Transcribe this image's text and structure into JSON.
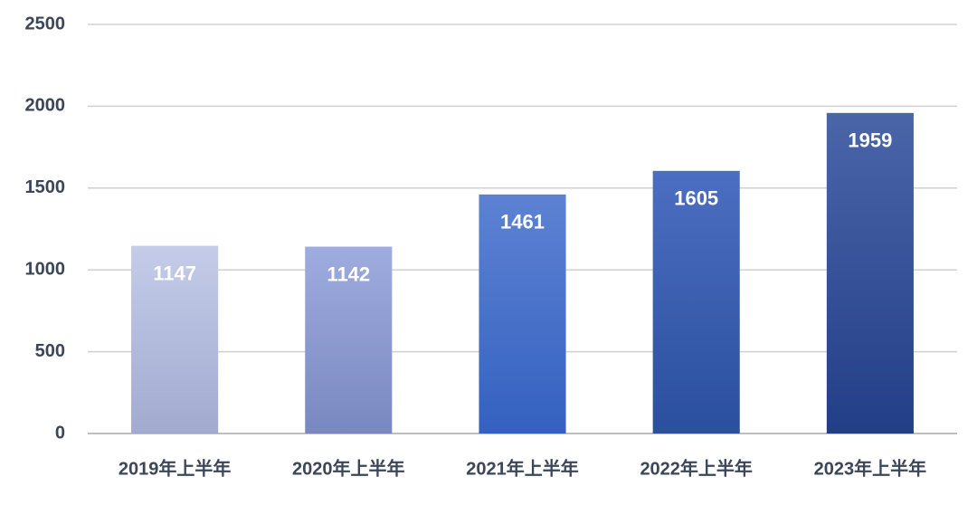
{
  "chart_data": {
    "type": "bar",
    "categories": [
      "2019年上半年",
      "2020年上半年",
      "2021年上半年",
      "2022年上半年",
      "2023年上半年"
    ],
    "values": [
      1147,
      1142,
      1461,
      1605,
      1959
    ],
    "colors": [
      [
        "#c4cce9",
        "#a2abcf"
      ],
      [
        "#9eacdf",
        "#7988c0"
      ],
      [
        "#5d82d3",
        "#3461c0"
      ],
      [
        "#4c6ec2",
        "#2a4f9d"
      ],
      [
        "#4b65a9",
        "#223e86"
      ]
    ],
    "ylim": [
      0,
      2500
    ],
    "yticks": [
      0,
      500,
      1000,
      1500,
      2000,
      2500
    ],
    "grid": true
  }
}
